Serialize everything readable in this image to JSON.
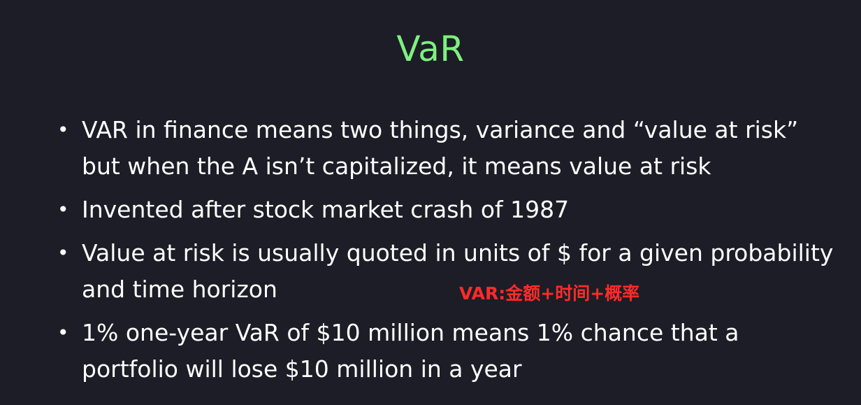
{
  "slide": {
    "title": "VaR",
    "bullets": [
      "VAR in finance means two things, variance and “value at risk” but when the A isn’t capitalized, it means value at risk",
      "Invented after stock market crash of 1987",
      "Value at risk is usually quoted in units of $ for a given probability and time horizon",
      "1%  one-year VaR of $10 million means 1% chance that a portfolio will lose $10 million in a year"
    ],
    "annotation": "VAR:金额+时间+概率",
    "bullet_glyph": "•",
    "colors": {
      "background": "#1c1d26",
      "title": "#7ff07f",
      "text": "#ffffff",
      "annotation": "#ff2a2a"
    }
  }
}
